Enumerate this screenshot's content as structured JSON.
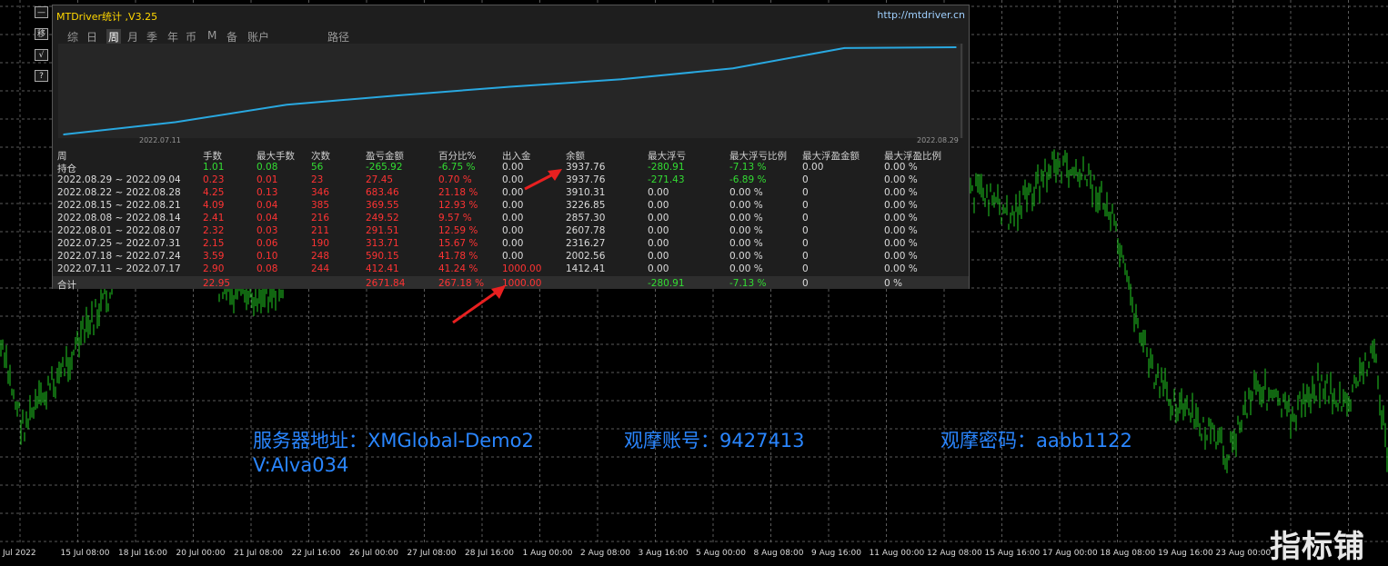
{
  "panel": {
    "title": "MTDriver统计 ,V3.25",
    "url": "http://mtdriver.cn",
    "tabs": [
      "综",
      "日",
      "周",
      "月",
      "季",
      "年",
      "币",
      "M",
      "备",
      "账户",
      "路径"
    ],
    "active_tab": "周",
    "equity_start_date": "2022.07.11",
    "equity_end_date": "2022.08.29"
  },
  "side_buttons": [
    "—",
    "移",
    "√",
    "?"
  ],
  "stats": {
    "headers": [
      "周",
      "手数",
      "最大手数",
      "次数",
      "盈亏金额",
      "百分比%",
      "出入金",
      "余额",
      "最大浮亏",
      "最大浮亏比例",
      "最大浮盈金额",
      "最大浮盈比例"
    ],
    "rows": [
      [
        "持仓",
        "1.01",
        "0.08",
        "56",
        "-265.92",
        "-6.75 %",
        "0.00",
        "3937.76",
        "-280.91",
        "-7.13 %",
        "0.00",
        "0.00 %"
      ],
      [
        "2022.08.29 ~ 2022.09.04",
        "0.23",
        "0.01",
        "23",
        "27.45",
        "0.70 %",
        "0.00",
        "3937.76",
        "-271.43",
        "-6.89 %",
        "0",
        "0.00 %"
      ],
      [
        "2022.08.22 ~ 2022.08.28",
        "4.25",
        "0.13",
        "346",
        "683.46",
        "21.18 %",
        "0.00",
        "3910.31",
        "0.00",
        "0.00 %",
        "0",
        "0.00 %"
      ],
      [
        "2022.08.15 ~ 2022.08.21",
        "4.09",
        "0.04",
        "385",
        "369.55",
        "12.93 %",
        "0.00",
        "3226.85",
        "0.00",
        "0.00 %",
        "0",
        "0.00 %"
      ],
      [
        "2022.08.08 ~ 2022.08.14",
        "2.41",
        "0.04",
        "216",
        "249.52",
        "9.57 %",
        "0.00",
        "2857.30",
        "0.00",
        "0.00 %",
        "0",
        "0.00 %"
      ],
      [
        "2022.08.01 ~ 2022.08.07",
        "2.32",
        "0.03",
        "211",
        "291.51",
        "12.59 %",
        "0.00",
        "2607.78",
        "0.00",
        "0.00 %",
        "0",
        "0.00 %"
      ],
      [
        "2022.07.25 ~ 2022.07.31",
        "2.15",
        "0.06",
        "190",
        "313.71",
        "15.67 %",
        "0.00",
        "2316.27",
        "0.00",
        "0.00 %",
        "0",
        "0.00 %"
      ],
      [
        "2022.07.18 ~ 2022.07.24",
        "3.59",
        "0.10",
        "248",
        "590.15",
        "41.78 %",
        "0.00",
        "2002.56",
        "0.00",
        "0.00 %",
        "0",
        "0.00 %"
      ],
      [
        "2022.07.11 ~ 2022.07.17",
        "2.90",
        "0.08",
        "244",
        "412.41",
        "41.24 %",
        "1000.00",
        "1412.41",
        "0.00",
        "0.00 %",
        "0",
        "0.00 %"
      ]
    ],
    "total": [
      "合计",
      "22.95",
      "",
      "",
      "2671.84",
      "267.18 %",
      "1000.00",
      "",
      "-280.91",
      "-7.13 %",
      "0",
      "0 %"
    ]
  },
  "overlay": {
    "server": "服务器地址：XMGlobal-Demo2",
    "account": "观摩账号：9427413",
    "password": "观摩密码：aabb1122",
    "contact": "V:Alva034"
  },
  "time_axis": [
    "Jul 2022",
    "15 Jul 08:00",
    "18 Jul 16:00",
    "20 Jul 00:00",
    "21 Jul 08:00",
    "22 Jul 16:00",
    "26 Jul 00:00",
    "27 Jul 08:00",
    "28 Jul 16:00",
    "1 Aug 00:00",
    "2 Aug 08:00",
    "3 Aug 16:00",
    "5 Aug 00:00",
    "8 Aug 08:00",
    "9 Aug 16:00",
    "11 Aug 00:00",
    "12 Aug 08:00",
    "15 Aug 16:00",
    "17 Aug 00:00",
    "18 Aug 08:00",
    "19 Aug 16:00",
    "23 Aug 00:00"
  ],
  "watermark": "指标铺",
  "colors": {
    "background": "#000000",
    "candles": "#22cc22",
    "grid": "#5a5a5a",
    "equity_line": "#29a8e0",
    "overlay_text": "#2a86ff",
    "arrow": "#e82020",
    "title": "#ffd700"
  },
  "chart_data": {
    "type": "line",
    "title": "",
    "x": [
      "2022.07.11",
      "2022.07.17",
      "2022.07.24",
      "2022.07.31",
      "2022.08.07",
      "2022.08.14",
      "2022.08.21",
      "2022.08.28",
      "2022.09.04"
    ],
    "series": [
      {
        "values": [
          1000.0,
          1412.41,
          2002.56,
          2316.27,
          2607.78,
          2857.3,
          3226.85,
          3910.31,
          3937.76
        ]
      }
    ],
    "xlabel": "",
    "ylabel": ""
  }
}
